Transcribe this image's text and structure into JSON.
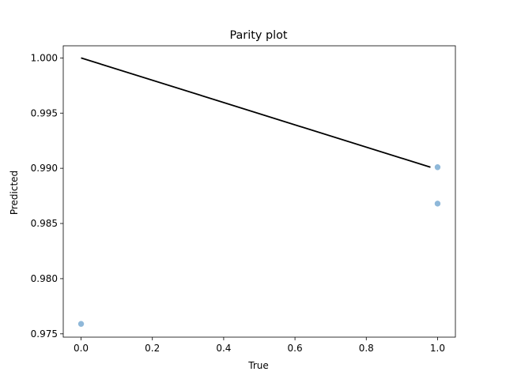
{
  "chart_data": {
    "type": "scatter",
    "title": "Parity plot",
    "xlabel": "True",
    "ylabel": "Predicted",
    "xlim": [
      -0.05,
      1.05
    ],
    "ylim": [
      0.9747,
      1.0011
    ],
    "xticks": [
      0.0,
      0.2,
      0.4,
      0.6,
      0.8,
      1.0
    ],
    "xtick_labels": [
      "0.0",
      "0.2",
      "0.4",
      "0.6",
      "0.8",
      "1.0"
    ],
    "yticks": [
      0.975,
      0.98,
      0.985,
      0.99,
      0.995,
      1.0
    ],
    "ytick_labels": [
      "0.975",
      "0.980",
      "0.985",
      "0.990",
      "0.995",
      "1.000"
    ],
    "grid": false,
    "series": [
      {
        "kind": "scatter",
        "color": "#8fb8d9",
        "points": [
          {
            "x": 0.0,
            "y": 0.9759
          },
          {
            "x": 1.0,
            "y": 0.9901
          },
          {
            "x": 1.0,
            "y": 0.9868
          }
        ]
      },
      {
        "kind": "line",
        "color": "#000000",
        "points": [
          {
            "x": 0.0,
            "y": 1.0
          },
          {
            "x": 0.98,
            "y": 0.9901
          }
        ]
      }
    ]
  }
}
